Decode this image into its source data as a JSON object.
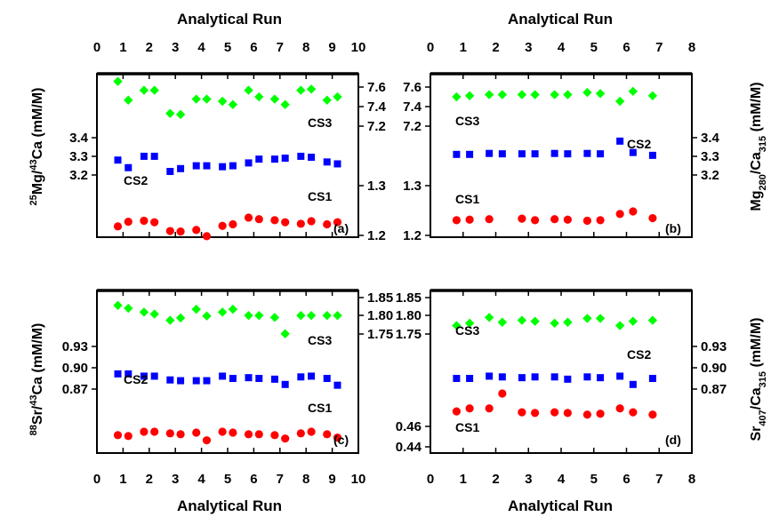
{
  "figure": {
    "top_xlabel_left": "Analytical Run",
    "top_xlabel_right": "Analytical Run",
    "bottom_xlabel_left": "Analytical Run",
    "bottom_xlabel_right": "Analytical Run",
    "colors": {
      "CS1": "#ff0000",
      "CS2": "#0000ff",
      "CS3": "#00ff00",
      "frame": "#000000"
    }
  },
  "chart_data": [
    {
      "id": "a",
      "type": "scatter",
      "panel_label": "(a)",
      "ylabel_left": "25Mg/43Ca (mM/M)",
      "ylabel_right": "",
      "xlabel": "Analytical Run",
      "xlim": [
        0,
        10
      ],
      "xticks": [
        "0",
        "1",
        "2",
        "3",
        "4",
        "5",
        "6",
        "7",
        "8",
        "9",
        "10"
      ],
      "left_ticks": [
        "3.2",
        "3.3",
        "3.4"
      ],
      "right_ticks": [
        "1.2",
        "1.3",
        "7.2",
        "7.4",
        "7.6"
      ],
      "series": [
        {
          "name": "CS3",
          "marker": "diamond",
          "color": "#00ff00",
          "x": [
            0.8,
            1.2,
            1.8,
            2.2,
            2.8,
            3.2,
            3.8,
            4.2,
            4.8,
            5.2,
            5.8,
            6.2,
            6.8,
            7.2,
            7.8,
            8.2,
            8.8,
            9.2
          ],
          "y": [
            7.63,
            7.46,
            7.55,
            7.55,
            7.34,
            7.33,
            7.47,
            7.47,
            7.45,
            7.42,
            7.55,
            7.49,
            7.47,
            7.42,
            7.55,
            7.56,
            7.46,
            7.49
          ]
        },
        {
          "name": "CS2",
          "marker": "square",
          "color": "#0000ff",
          "x": [
            0.8,
            1.2,
            1.8,
            2.2,
            2.8,
            3.2,
            3.8,
            4.2,
            4.8,
            5.2,
            5.8,
            6.2,
            6.8,
            7.2,
            7.8,
            8.2,
            8.8,
            9.2
          ],
          "y": [
            3.285,
            3.245,
            3.305,
            3.305,
            3.225,
            3.24,
            3.255,
            3.255,
            3.25,
            3.255,
            3.27,
            3.29,
            3.29,
            3.295,
            3.305,
            3.3,
            3.275,
            3.265
          ]
        },
        {
          "name": "CS1",
          "marker": "circle",
          "color": "#ff0000",
          "x": [
            0.8,
            1.2,
            1.8,
            2.2,
            2.8,
            3.2,
            3.8,
            4.2,
            4.8,
            5.2,
            5.8,
            6.2,
            6.8,
            7.2,
            7.8,
            8.2,
            8.8,
            9.2
          ],
          "y": [
            1.221,
            1.23,
            1.232,
            1.229,
            1.212,
            1.211,
            1.214,
            1.202,
            1.222,
            1.225,
            1.238,
            1.235,
            1.233,
            1.229,
            1.226,
            1.231,
            1.225,
            1.229
          ]
        }
      ]
    },
    {
      "id": "b",
      "type": "scatter",
      "panel_label": "(b)",
      "ylabel_left": "",
      "ylabel_right": "Mg280/Ca315 (mM/M)",
      "xlabel": "Analytical Run",
      "xlim": [
        0,
        8
      ],
      "xticks": [
        "0",
        "1",
        "2",
        "3",
        "4",
        "5",
        "6",
        "7",
        "8"
      ],
      "left_ticks": [
        "1.2",
        "1.3",
        "7.2",
        "7.4",
        "7.6"
      ],
      "right_ticks": [
        "3.2",
        "3.3",
        "3.4"
      ],
      "series": [
        {
          "name": "CS3",
          "marker": "diamond",
          "color": "#00ff00",
          "x": [
            0.8,
            1.2,
            1.8,
            2.2,
            2.8,
            3.2,
            3.8,
            4.2,
            4.8,
            5.2,
            5.8,
            6.2,
            6.8
          ],
          "y": [
            7.49,
            7.5,
            7.51,
            7.51,
            7.51,
            7.51,
            7.51,
            7.51,
            7.53,
            7.52,
            7.45,
            7.54,
            7.5
          ]
        },
        {
          "name": "CS2",
          "marker": "square",
          "color": "#0000ff",
          "x": [
            0.8,
            1.2,
            1.8,
            2.2,
            2.8,
            3.2,
            3.8,
            4.2,
            4.8,
            5.2,
            5.8,
            6.2,
            6.8
          ],
          "y": [
            3.315,
            3.315,
            3.32,
            3.318,
            3.318,
            3.318,
            3.32,
            3.318,
            3.32,
            3.318,
            3.385,
            3.325,
            3.31
          ]
        },
        {
          "name": "CS1",
          "marker": "circle",
          "color": "#ff0000",
          "x": [
            0.8,
            1.2,
            1.8,
            2.8,
            3.2,
            3.8,
            4.2,
            4.8,
            5.2,
            5.8,
            6.2,
            6.8
          ],
          "y": [
            1.233,
            1.234,
            1.235,
            1.236,
            1.233,
            1.235,
            1.234,
            1.232,
            1.233,
            1.245,
            1.25,
            1.237
          ]
        }
      ]
    },
    {
      "id": "c",
      "type": "scatter",
      "panel_label": "(c)",
      "ylabel_left": "88Sr/43Ca (mM/M)",
      "ylabel_right": "",
      "xlabel": "Analytical Run",
      "xlim": [
        0,
        10
      ],
      "xticks": [
        "0",
        "1",
        "2",
        "3",
        "4",
        "5",
        "6",
        "7",
        "8",
        "9",
        "10"
      ],
      "left_ticks": [
        "0.87",
        "0.90",
        "0.93"
      ],
      "right_ticks": [
        "1.75",
        "1.80",
        "1.85"
      ],
      "series": [
        {
          "name": "CS3",
          "marker": "diamond",
          "color": "#00ff00",
          "x": [
            0.8,
            1.2,
            1.8,
            2.2,
            2.8,
            3.2,
            3.8,
            4.2,
            4.8,
            5.2,
            5.8,
            6.2,
            6.8,
            7.2,
            7.8,
            8.2,
            8.8,
            9.2
          ],
          "y": [
            1.829,
            1.823,
            1.815,
            1.811,
            1.798,
            1.803,
            1.821,
            1.807,
            1.815,
            1.821,
            1.808,
            1.808,
            1.804,
            1.77,
            1.808,
            1.808,
            1.808,
            1.808
          ]
        },
        {
          "name": "CS2",
          "marker": "square",
          "color": "#0000ff",
          "x": [
            0.8,
            1.2,
            1.8,
            2.2,
            2.8,
            3.2,
            3.8,
            4.2,
            4.8,
            5.2,
            5.8,
            6.2,
            6.8,
            7.2,
            7.8,
            8.2,
            8.8,
            9.2
          ],
          "y": [
            0.906,
            0.906,
            0.903,
            0.903,
            0.898,
            0.897,
            0.897,
            0.897,
            0.903,
            0.9,
            0.901,
            0.9,
            0.899,
            0.892,
            0.902,
            0.903,
            0.9,
            0.891
          ]
        }
      ],
      "cs1_points": {
        "name": "CS1",
        "marker": "circle",
        "color": "#ff0000",
        "x": [
          0.8,
          1.2,
          1.8,
          2.2,
          2.8,
          3.2,
          3.8,
          4.2,
          4.8,
          5.2,
          5.8,
          6.2,
          6.8,
          7.2,
          7.8,
          8.2,
          8.8,
          9.2
        ],
        "y": [
          0.4521,
          0.4515,
          0.4544,
          0.4544,
          0.4533,
          0.4527,
          0.4538,
          0.4486,
          0.4544,
          0.4538,
          0.4527,
          0.4527,
          0.4521,
          0.4498,
          0.4533,
          0.4544,
          0.4527,
          0.4504
        ]
      }
    },
    {
      "id": "d",
      "type": "scatter",
      "panel_label": "(d)",
      "ylabel_left": "",
      "ylabel_right": "Sr407/Ca315 (mM/M)",
      "xlabel": "Analytical Run",
      "xlim": [
        0,
        8
      ],
      "xticks": [
        "0",
        "1",
        "2",
        "3",
        "4",
        "5",
        "6",
        "7",
        "8"
      ],
      "left_ticks": [
        "0.44",
        "0.46",
        "1.75",
        "1.80",
        "1.85"
      ],
      "right_ticks": [
        "0.87",
        "0.90",
        "0.93"
      ],
      "series": [
        {
          "name": "CS3",
          "marker": "diamond",
          "color": "#00ff00",
          "x": [
            0.8,
            1.2,
            1.8,
            2.2,
            2.8,
            3.2,
            3.8,
            4.2,
            4.8,
            5.2,
            5.8,
            6.2,
            6.8
          ],
          "y": [
            1.787,
            1.792,
            1.804,
            1.794,
            1.798,
            1.796,
            1.792,
            1.794,
            1.802,
            1.802,
            1.787,
            1.796,
            1.798
          ]
        },
        {
          "name": "CS2",
          "marker": "square",
          "color": "#0000ff",
          "x": [
            0.8,
            1.2,
            1.8,
            2.2,
            2.8,
            3.2,
            3.8,
            4.2,
            4.8,
            5.2,
            5.8,
            6.2,
            6.8
          ],
          "y": [
            0.9,
            0.9,
            0.903,
            0.902,
            0.901,
            0.902,
            0.902,
            0.899,
            0.902,
            0.901,
            0.903,
            0.892,
            0.9
          ]
        },
        {
          "name": "CS1",
          "marker": "circle",
          "color": "#ff0000",
          "x": [
            0.8,
            1.2,
            1.8,
            2.2,
            2.8,
            3.2,
            3.8,
            4.2,
            4.8,
            5.2,
            5.8,
            6.2,
            6.8
          ],
          "y": [
            0.4618,
            0.4637,
            0.4637,
            0.4733,
            0.4612,
            0.4608,
            0.4612,
            0.4608,
            0.4597,
            0.4603,
            0.4637,
            0.4612,
            0.4597
          ]
        }
      ]
    }
  ]
}
